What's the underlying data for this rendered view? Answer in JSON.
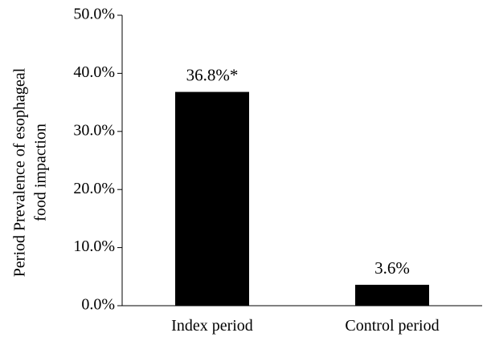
{
  "colors": {
    "bar": "#000000",
    "axis": "#000000",
    "background": "#ffffff"
  },
  "chart_data": {
    "type": "bar",
    "title": "",
    "xlabel": "",
    "ylabel": [
      "Period Prevalence of esophageal",
      "food impaction"
    ],
    "categories": [
      "Index period",
      "Control period"
    ],
    "values": [
      36.8,
      3.6
    ],
    "data_labels": [
      "36.8%*",
      "3.6%"
    ],
    "ylim": [
      0,
      50
    ],
    "yticks": [
      0,
      10,
      20,
      30,
      40,
      50
    ],
    "ytick_labels": [
      "0.0%",
      "10.0%",
      "20.0%",
      "30.0%",
      "40.0%",
      "50.0%"
    ],
    "grid": false,
    "legend": "none"
  }
}
